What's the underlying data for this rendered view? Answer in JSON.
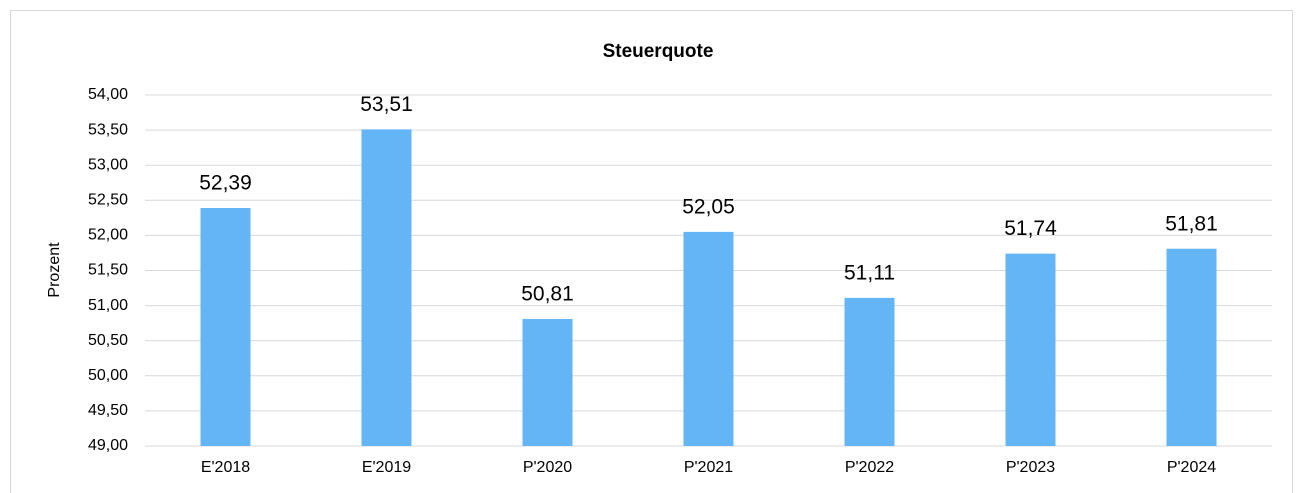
{
  "chart_data": {
    "type": "bar",
    "title": "Steuerquote",
    "y_label": "Prozent",
    "categories": [
      "E'2018",
      "E'2019",
      "P'2020",
      "P'2021",
      "P'2022",
      "P'2023",
      "P'2024"
    ],
    "values": [
      52.39,
      53.51,
      50.81,
      52.05,
      51.11,
      51.74,
      51.81
    ],
    "value_labels": [
      "52,39",
      "53,51",
      "50,81",
      "52,05",
      "51,11",
      "51,74",
      "51,81"
    ],
    "color": "#64b5f6",
    "ylim": [
      49,
      54
    ],
    "yticks": [
      {
        "value": 49,
        "label": "49,00"
      },
      {
        "value": 49.5,
        "label": "49,50"
      },
      {
        "value": 50,
        "label": "50,00"
      },
      {
        "value": 50.5,
        "label": "50,50"
      },
      {
        "value": 51,
        "label": "51,00"
      },
      {
        "value": 51.5,
        "label": "51,50"
      },
      {
        "value": 52,
        "label": "52,00"
      },
      {
        "value": 52.5,
        "label": "52,50"
      },
      {
        "value": 53,
        "label": "53,00"
      },
      {
        "value": 53.5,
        "label": "53,50"
      },
      {
        "value": 54,
        "label": "54,00"
      }
    ],
    "grid": true
  }
}
